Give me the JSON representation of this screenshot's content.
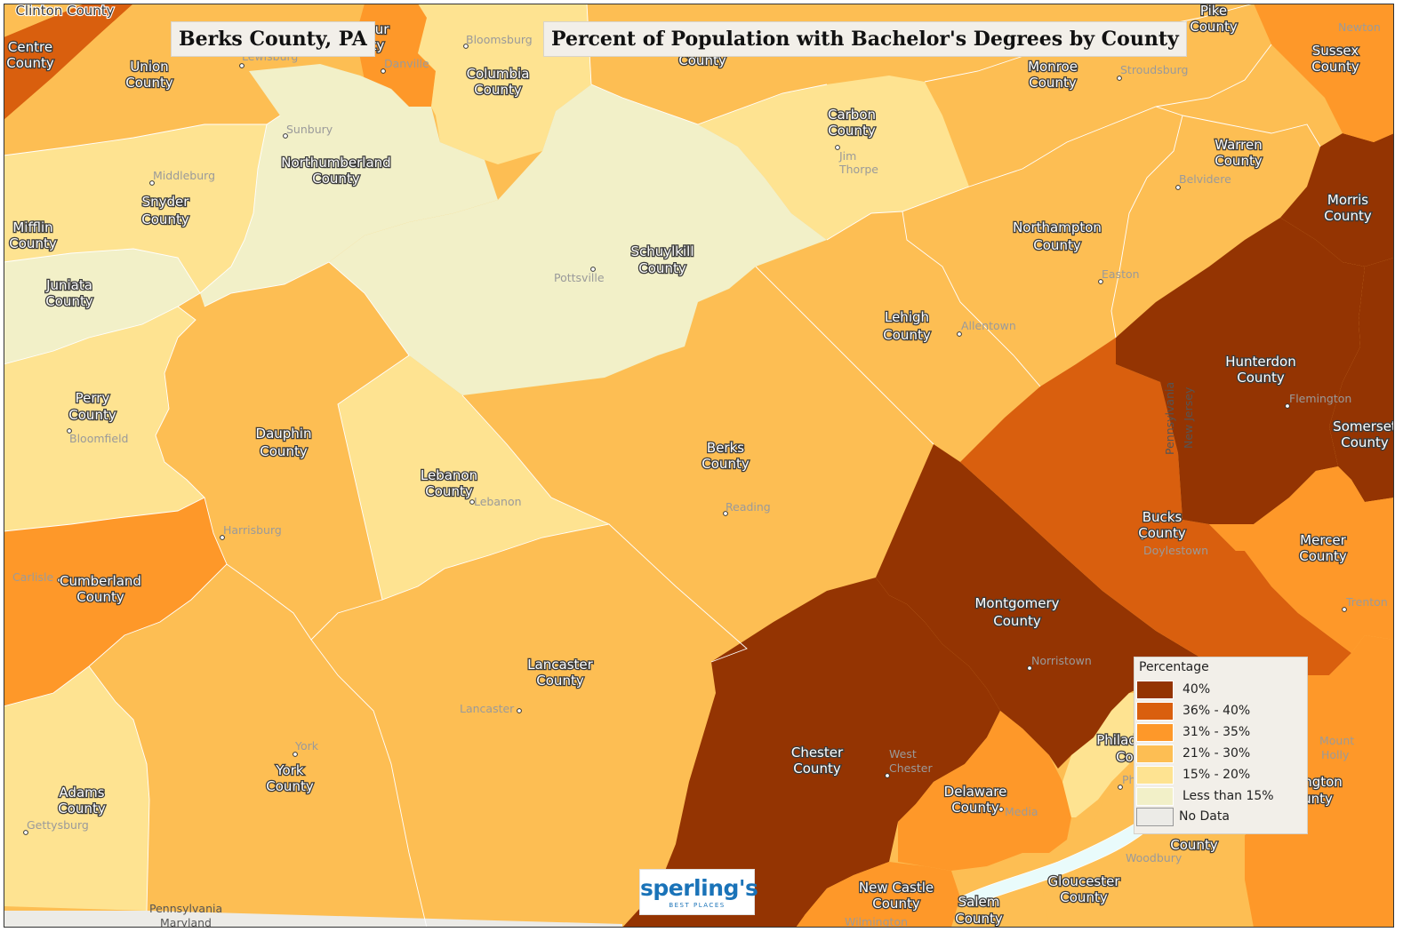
{
  "title_left": "Berks County, PA",
  "title_right": "Percent of Population with Bachelor's Degrees by County",
  "colors": {
    "c40": "#943402",
    "c36": "#d95f0e",
    "c31": "#fe9829",
    "c21": "#fdbe53",
    "c15": "#fee391",
    "lt15": "#f2f0c8",
    "nodata": "#ecebe7"
  },
  "legend": {
    "title": "Percentage",
    "items": [
      {
        "label": "40%",
        "color": "#943402"
      },
      {
        "label": "36% - 40%",
        "color": "#d95f0e"
      },
      {
        "label": "31% - 35%",
        "color": "#fe9829"
      },
      {
        "label": "21% - 30%",
        "color": "#fdbe53"
      },
      {
        "label": "15% - 20%",
        "color": "#fee391"
      },
      {
        "label": "Less than 15%",
        "color": "#f2f0c8"
      },
      {
        "label": "No Data",
        "color": "#ecebe7"
      }
    ]
  },
  "counties": {
    "clinton": "Clinton County",
    "centre_1": "Centre",
    "centre_2": "County",
    "union_1": "Union",
    "union_2": "County",
    "montour_1": "our",
    "montour_2": "ty",
    "columbia_1": "Columbia",
    "columbia_2": "County",
    "luzerne_2": "County",
    "pike_1": "Pike",
    "pike_2": "County",
    "sussex_1": "Sussex",
    "sussex_2": "County",
    "monroe_1": "Monroe",
    "monroe_2": "County",
    "carbon_1": "Carbon",
    "carbon_2": "County",
    "northumberland_1": "Northumberland",
    "northumberland_2": "County",
    "snyder_1": "Snyder",
    "snyder_2": "County",
    "mifflin_1": "Mifflin",
    "mifflin_2": "County",
    "juniata_1": "Juniata",
    "juniata_2": "County",
    "schuylkill_1": "Schuylkill",
    "schuylkill_2": "County",
    "warren_1": "Warren",
    "warren_2": "County",
    "morris_1": "Morris",
    "morris_2": "County",
    "northampton_1": "Northampton",
    "northampton_2": "County",
    "lehigh_1": "Lehigh",
    "lehigh_2": "County",
    "hunterdon_1": "Hunterdon",
    "hunterdon_2": "County",
    "somerset_1": "Somerset",
    "somerset_2": "County",
    "perry_1": "Perry",
    "perry_2": "County",
    "dauphin_1": "Dauphin",
    "dauphin_2": "County",
    "lebanon_1": "Lebanon",
    "lebanon_2": "County",
    "berks_1": "Berks",
    "berks_2": "County",
    "bucks_1": "Bucks",
    "bucks_2": "County",
    "mercer_1": "Mercer",
    "mercer_2": "County",
    "cumberland_1": "Cumberland",
    "cumberland_2": "County",
    "montgomery_1": "Montgomery",
    "montgomery_2": "County",
    "lancaster_1": "Lancaster",
    "lancaster_2": "County",
    "chester_1": "Chester",
    "chester_2": "County",
    "philadelphia_1": "Philad",
    "philadelphia_2": "Co",
    "burlington_1": "ngton",
    "burlington_2": "unty",
    "york_1": "York",
    "york_2": "County",
    "adams_1": "Adams",
    "adams_2": "County",
    "delaware_1": "Delaware",
    "delaware_2": "County",
    "camden_2": "County",
    "newcastle_1": "New Castle",
    "newcastle_2": "County",
    "salem_1": "Salem",
    "salem_2": "County",
    "gloucester_1": "Gloucester",
    "gloucester_2": "County"
  },
  "cities": {
    "bloomsburg": "Bloomsburg",
    "lewisburg": "Lewisburg",
    "danville": "Danville",
    "newton": "Newton",
    "stroudsburg": "Stroudsburg",
    "sunbury": "Sunbury",
    "middleburg": "Middleburg",
    "jim_thorpe_1": "Jim",
    "jim_thorpe_2": "Thorpe",
    "belvidere": "Belvidere",
    "pottsville": "Pottsville",
    "easton": "Easton",
    "allentown": "Allentown",
    "flemington": "Flemington",
    "bloomfield": "Bloomfield",
    "lebanon": "Lebanon",
    "reading": "Reading",
    "harrisburg": "Harrisburg",
    "doylestown": "Doylestown",
    "carlisle": "Carlisle",
    "trenton": "Trenton",
    "norristown": "Norristown",
    "lancaster": "Lancaster",
    "mount_holly_1": "Mount",
    "mount_holly_2": "Holly",
    "york": "York",
    "west_chester_1": "West",
    "west_chester_2": "Chester",
    "media": "Media",
    "ph": "Ph",
    "gettysburg": "Gettysburg",
    "woodbury": "Woodbury",
    "wilmington": "Wilmington"
  },
  "states": {
    "pennsylvania": "Pennsylvania",
    "maryland": "Maryland",
    "pa_vertical": "Pennsylvania",
    "nj_vertical": "New Jersey"
  },
  "brand": {
    "name": "sperling's",
    "tagline": "BEST PLACES"
  }
}
